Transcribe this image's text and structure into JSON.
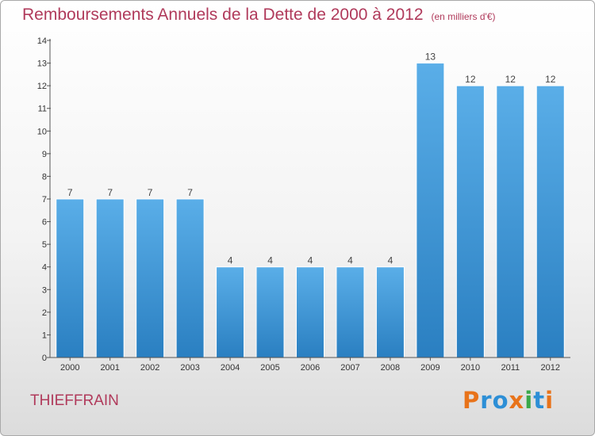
{
  "title": "Remboursements Annuels de la Dette de 2000 à 2012",
  "subtitle": "(en milliers d'€)",
  "commune": "THIEFFRAIN",
  "logo": {
    "text": "Proxiti",
    "colors": [
      "#e8731a",
      "#2d8fd6",
      "#2d8fd6",
      "#e8731a",
      "#3aa84a",
      "#2d8fd6",
      "#e8731a"
    ]
  },
  "colors": {
    "bar_light": "#5aaee8",
    "bar_dark": "#2a7fc1",
    "title": "#b03a5b"
  },
  "chart_data": {
    "type": "bar",
    "categories": [
      "2000",
      "2001",
      "2002",
      "2003",
      "2004",
      "2005",
      "2006",
      "2007",
      "2008",
      "2009",
      "2010",
      "2011",
      "2012"
    ],
    "values": [
      7,
      7,
      7,
      7,
      4,
      4,
      4,
      4,
      4,
      13,
      12,
      12,
      12
    ],
    "value_labels": [
      "7",
      "7",
      "7",
      "7",
      "4",
      "4",
      "4",
      "4",
      "4",
      "13",
      "12",
      "12",
      "12"
    ],
    "yticks": [
      "0",
      "1",
      "2",
      "3",
      "4",
      "5",
      "6",
      "7",
      "8",
      "9",
      "10",
      "11",
      "12",
      "13",
      "14"
    ],
    "ylim": [
      0,
      14
    ],
    "grid": false,
    "legend": "none"
  }
}
